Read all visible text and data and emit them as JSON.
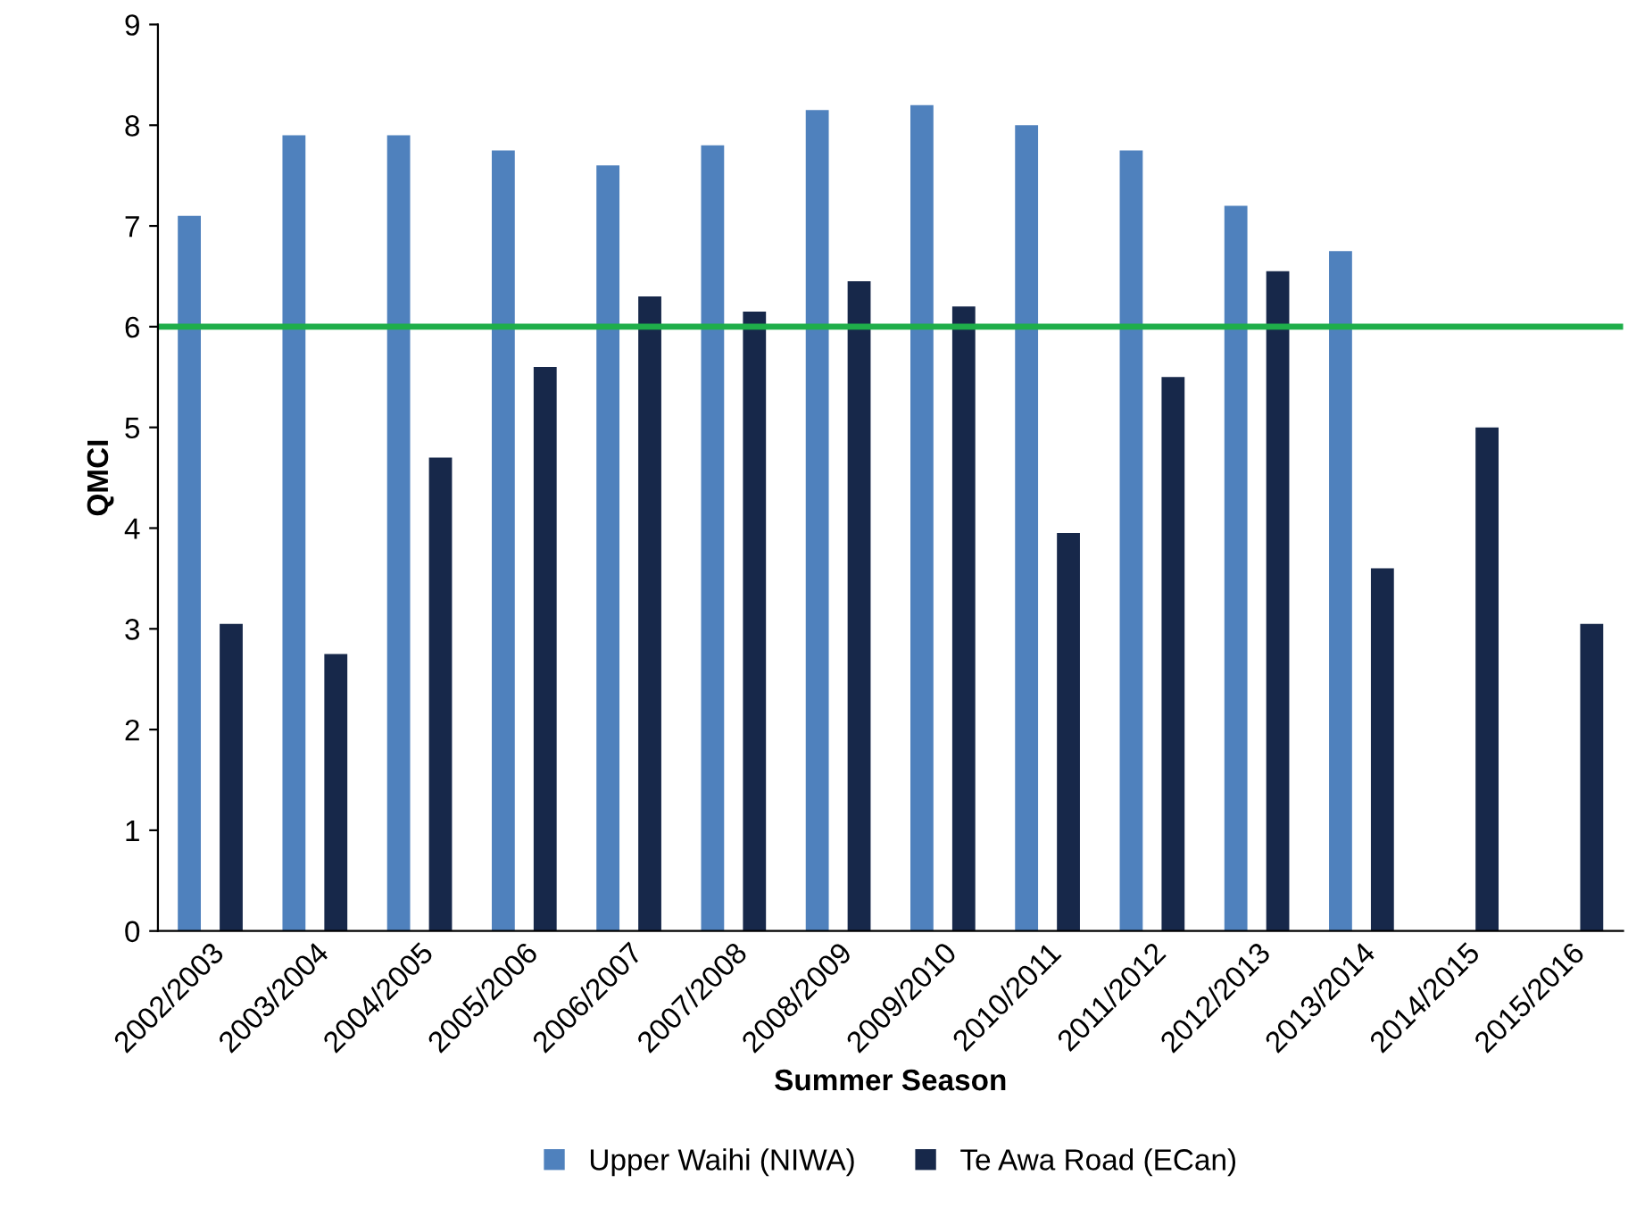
{
  "chart_data": {
    "type": "bar",
    "xlabel": "Summer Season",
    "ylabel": "QMCI",
    "categories": [
      "2002/2003",
      "2003/2004",
      "2004/2005",
      "2005/2006",
      "2006/2007",
      "2007/2008",
      "2008/2009",
      "2009/2010",
      "2010/2011",
      "2011/2012",
      "2012/2013",
      "2013/2014",
      "2014/2015",
      "2015/2016"
    ],
    "series": [
      {
        "name": "Upper Waihi (NIWA)",
        "color": "#4f81bd",
        "values": [
          7.1,
          7.9,
          7.9,
          7.75,
          7.6,
          7.8,
          8.15,
          8.2,
          8.0,
          7.75,
          7.2,
          6.75,
          null,
          null
        ]
      },
      {
        "name": "Te Awa Road (ECan)",
        "color": "#17284a",
        "values": [
          3.05,
          2.75,
          4.7,
          5.6,
          6.3,
          6.15,
          6.45,
          6.2,
          3.95,
          5.5,
          6.55,
          3.6,
          5.0,
          3.05
        ]
      }
    ],
    "ylim": [
      0,
      9
    ],
    "yticks": [
      0,
      1,
      2,
      3,
      4,
      5,
      6,
      7,
      8,
      9
    ],
    "ref_lines": [
      {
        "axis": "y",
        "value": 6,
        "color": "#1fae4a"
      }
    ],
    "grid": false,
    "legend": "bottom"
  }
}
